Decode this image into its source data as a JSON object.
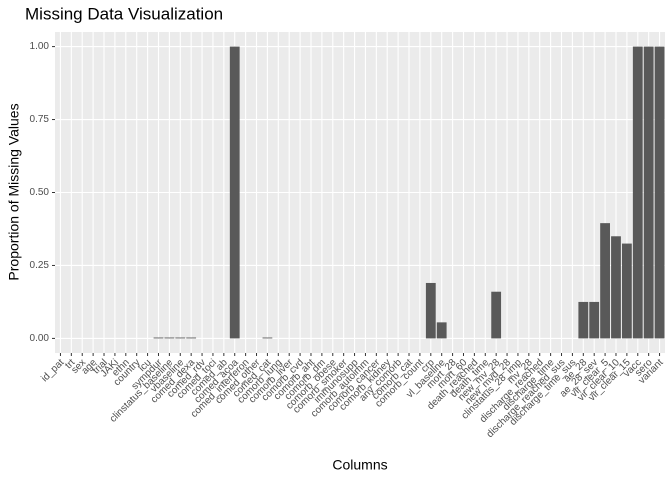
{
  "chart_data": {
    "type": "bar",
    "title": "Missing Data Visualization",
    "x_label": "Columns",
    "y_label": "Proportion of Missing Values",
    "categories": [
      "id_pat",
      "trt",
      "sex",
      "age",
      "trial",
      "JAKi",
      "ethn",
      "country",
      "icu",
      "sympdur",
      "clinstatus_baseline",
      "vbaseline",
      "comed_dexa",
      "comed_rdv",
      "comed_toci",
      "comed_ab",
      "comed_acoa",
      "comed_interferon",
      "comed_other",
      "comed_cat",
      "comorb_lung",
      "comorb_liver",
      "comorb_cvd",
      "comorb_aht",
      "comorb_dm",
      "comorb_obese",
      "comorb_smoker",
      "immunosupp",
      "comorb_autoimm",
      "comorb_cancer",
      "comorb_kidney",
      "any_comorb",
      "comorb_cat",
      "comorb_count",
      "crp",
      "vl_baseline",
      "mort_28",
      "mort_60",
      "death_reached",
      "death_time",
      "new_mv_28",
      "new_mvd_28",
      "clinstatus_28_imp",
      "mv_28",
      "discharge_reached",
      "discharge_time",
      "discharge_reached_sus",
      "discharge_time_sus",
      "ae_28",
      "ae_28_sev",
      "vir_clear_5",
      "vir_clear_10",
      "vir_clear_15",
      "vacc",
      "sero",
      "variant"
    ],
    "values": [
      0,
      0,
      0,
      0,
      0,
      0,
      0,
      0,
      0,
      0.003,
      0.003,
      0.003,
      0.003,
      0,
      0,
      0,
      1,
      0,
      0,
      0.003,
      0,
      0,
      0,
      0,
      0,
      0,
      0,
      0,
      0,
      0,
      0,
      0,
      0,
      0,
      0.19,
      0.055,
      0,
      0,
      0,
      0,
      0.16,
      0,
      0,
      0,
      0,
      0,
      0,
      0,
      0.125,
      0.125,
      0.395,
      0.35,
      0.325,
      1,
      1,
      1
    ],
    "color": "#595959",
    "ylim": [
      -0.05,
      1.05
    ],
    "yticks": [
      {
        "value": 0,
        "label": "0.00"
      },
      {
        "value": 0.25,
        "label": "0.25"
      },
      {
        "value": 0.5,
        "label": "0.50"
      },
      {
        "value": 0.75,
        "label": "0.75"
      },
      {
        "value": 1,
        "label": "1.00"
      }
    ],
    "grid": true
  }
}
